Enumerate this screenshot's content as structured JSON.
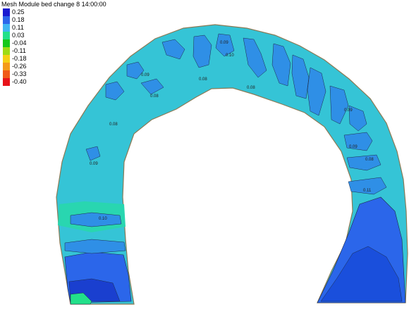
{
  "title": "Mesh Module bed change 8 14:00:00",
  "legend": [
    {
      "label": "0.25",
      "color": "#1a1ad0"
    },
    {
      "label": "0.18",
      "color": "#2b66ea"
    },
    {
      "label": "0.11",
      "color": "#3fb6f2"
    },
    {
      "label": "0.03",
      "color": "#22e08a"
    },
    {
      "label": "-0.04",
      "color": "#16c81b"
    },
    {
      "label": "-0.11",
      "color": "#9edb14"
    },
    {
      "label": "-0.18",
      "color": "#f5d014"
    },
    {
      "label": "-0.26",
      "color": "#f49a18"
    },
    {
      "label": "-0.33",
      "color": "#f05a18"
    },
    {
      "label": "-0.40",
      "color": "#e8141a"
    }
  ],
  "contour_labels": [
    "0.09",
    "0.09",
    "0.08",
    "0.08",
    "0.08",
    "0.08",
    "0.09",
    "0.09",
    "0.09",
    "0.08",
    "0.10",
    "0.11",
    "0.10"
  ],
  "colors": {
    "background": "#ffffff",
    "base_fill": "#35c4d6",
    "contour_line": "#1c2b4a",
    "bank_line": "#8a7a55"
  }
}
